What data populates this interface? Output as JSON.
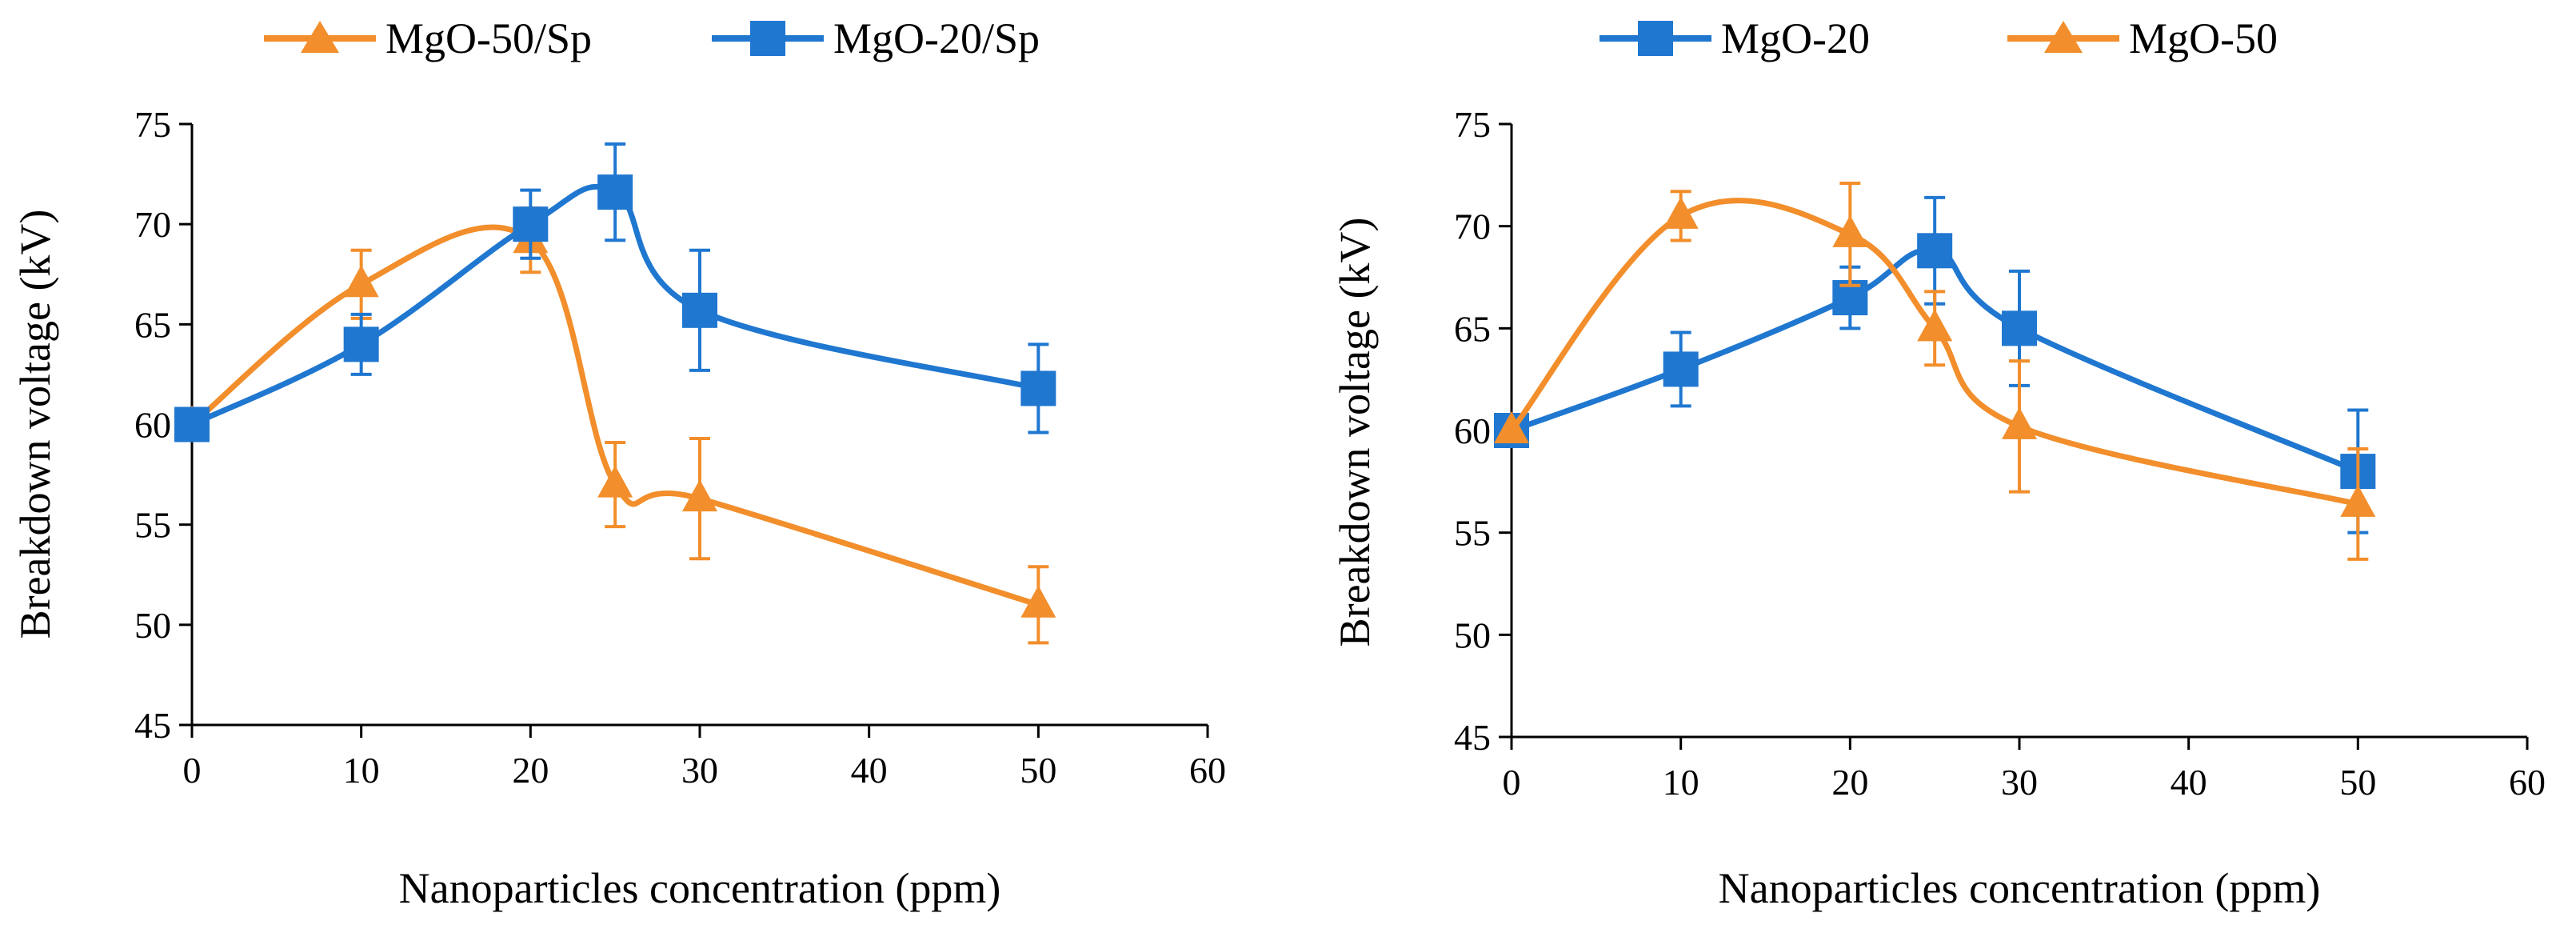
{
  "colors": {
    "orange": "#F28E2B",
    "blue": "#1F77D0",
    "axis": "#000000"
  },
  "chart_data": [
    {
      "type": "line",
      "title": "",
      "xlabel": "Nanoparticles concentration (ppm)",
      "ylabel": "Breakdown voltage (kV)",
      "xlim": [
        0,
        60
      ],
      "ylim": [
        45,
        75
      ],
      "x_ticks": [
        0,
        10,
        20,
        30,
        40,
        50,
        60
      ],
      "y_ticks": [
        45,
        50,
        55,
        60,
        65,
        70,
        75
      ],
      "x_tick_labels": [
        "0",
        "10",
        "20",
        "30",
        "40",
        "50",
        "60"
      ],
      "y_tick_labels": [
        "45",
        "50",
        "55",
        "60",
        "65",
        "70",
        "75"
      ],
      "legend": [
        "MgO-50/Sp",
        "MgO-20/Sp"
      ],
      "legend_position": "top",
      "grid": false,
      "series": [
        {
          "name": "MgO-50/Sp",
          "color": "orange",
          "marker": "triangle",
          "x": [
            0,
            10,
            20,
            25,
            30,
            50
          ],
          "y": [
            60,
            67,
            69.2,
            57,
            56.3,
            51
          ],
          "err": [
            0,
            1.7,
            1.6,
            2.1,
            3,
            1.9
          ]
        },
        {
          "name": "MgO-20/Sp",
          "color": "blue",
          "marker": "square",
          "x": [
            0,
            10,
            20,
            25,
            30,
            50
          ],
          "y": [
            60,
            64,
            70,
            71.6,
            65.7,
            61.8
          ],
          "err": [
            0,
            1.5,
            1.7,
            2.4,
            3,
            2.2
          ]
        }
      ]
    },
    {
      "type": "line",
      "title": "",
      "xlabel": "Nanoparticles concentration (ppm)",
      "ylabel": "Breakdown voltage (kV)",
      "xlim": [
        0,
        60
      ],
      "ylim": [
        45,
        75
      ],
      "x_ticks": [
        0,
        10,
        20,
        30,
        40,
        50,
        60
      ],
      "y_ticks": [
        45,
        50,
        55,
        60,
        65,
        70,
        75
      ],
      "x_tick_labels": [
        "0",
        "10",
        "20",
        "30",
        "40",
        "50",
        "60"
      ],
      "y_tick_labels": [
        "45",
        "50",
        "55",
        "60",
        "65",
        "70",
        "75"
      ],
      "legend": [
        "MgO-20",
        "MgO-50"
      ],
      "legend_position": "top",
      "grid": false,
      "series": [
        {
          "name": "MgO-20",
          "color": "blue",
          "marker": "square",
          "x": [
            0,
            10,
            20,
            25,
            30,
            50
          ],
          "y": [
            60,
            63,
            66.5,
            68.8,
            65,
            58
          ],
          "err": [
            0,
            1.8,
            1.5,
            2.6,
            2.8,
            3
          ]
        },
        {
          "name": "MgO-50",
          "color": "orange",
          "marker": "triangle",
          "x": [
            0,
            10,
            20,
            25,
            30,
            50
          ],
          "y": [
            60,
            70.5,
            69.6,
            65,
            60.2,
            56.4
          ],
          "err": [
            0,
            1.2,
            2.5,
            1.8,
            3.2,
            2.7
          ]
        }
      ]
    }
  ]
}
